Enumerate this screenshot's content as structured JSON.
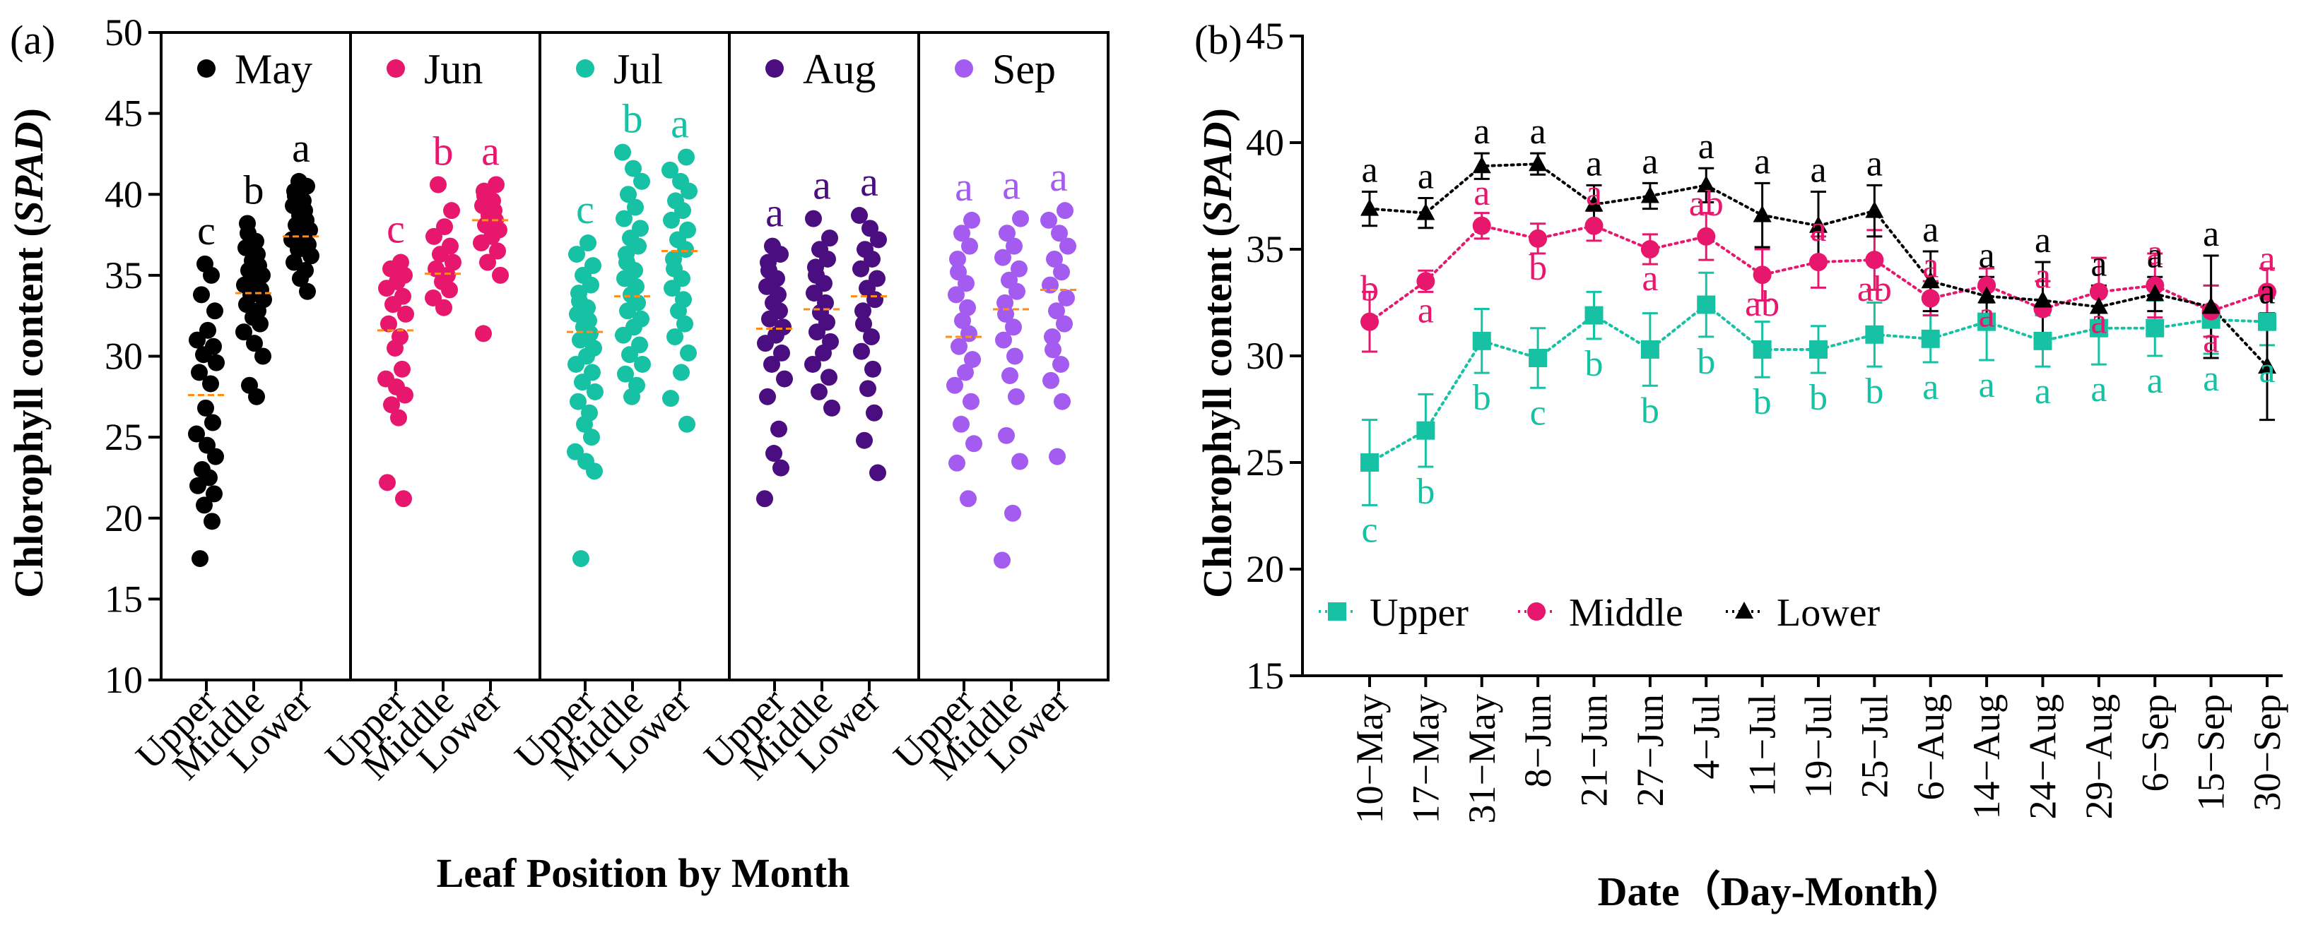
{
  "panel_labels": {
    "a": "(a)",
    "b": "(b)"
  },
  "chart_data": [
    {
      "type": "scatter",
      "panel": "(a)",
      "ylabel_prefix": "Chlorophyll content (",
      "ylabel_italic": "SPAD",
      "ylabel_suffix": ")",
      "xlabel": "Leaf Position by Month",
      "ylim": [
        10,
        50
      ],
      "yticks": [
        10,
        15,
        20,
        25,
        30,
        35,
        40,
        45,
        50
      ],
      "positions": [
        "Upper",
        "Middle",
        "Lower"
      ],
      "months": [
        {
          "name": "May",
          "color": "#000000",
          "letters": [
            "c",
            "b",
            "a"
          ],
          "means": [
            27.6,
            33.9,
            37.4
          ],
          "points": [
            [
              17.5,
              19.8,
              20.8,
              21.5,
              22.0,
              22.5,
              23.0,
              23.8,
              24.5,
              25.2,
              25.9,
              26.8,
              28.3,
              29.0,
              29.6,
              30.1,
              30.6,
              31.0,
              31.6,
              32.8,
              33.8,
              35.0,
              35.7
            ],
            [
              27.5,
              28.2,
              30.0,
              30.8,
              31.5,
              32.0,
              32.4,
              32.8,
              33.2,
              33.5,
              33.8,
              34.1,
              34.4,
              34.7,
              35.0,
              35.3,
              35.6,
              35.9,
              36.3,
              36.7,
              37.1,
              37.6,
              38.2
            ],
            [
              34.0,
              34.8,
              35.3,
              35.8,
              36.2,
              36.6,
              36.9,
              37.2,
              37.5,
              37.8,
              38.1,
              38.4,
              38.7,
              39.0,
              39.3,
              39.6,
              39.9,
              40.2,
              40.5,
              40.8
            ]
          ]
        },
        {
          "name": "Jun",
          "color": "#e8176e",
          "letters": [
            "c",
            "b",
            "a"
          ],
          "means": [
            31.6,
            35.1,
            38.4
          ],
          "points": [
            [
              21.2,
              22.2,
              26.2,
              27.0,
              27.6,
              28.1,
              28.6,
              29.2,
              30.5,
              31.2,
              32.0,
              32.6,
              33.2,
              33.7,
              34.2,
              34.6,
              35.0,
              35.4,
              35.8
            ],
            [
              33.0,
              33.6,
              34.1,
              34.6,
              35.0,
              35.4,
              35.8,
              36.3,
              36.8,
              37.4,
              38.0,
              39.0,
              40.6
            ],
            [
              31.4,
              35.0,
              35.8,
              36.5,
              37.0,
              37.4,
              37.8,
              38.1,
              38.4,
              38.7,
              39.0,
              39.3,
              39.6,
              39.9,
              40.2,
              40.6
            ]
          ]
        },
        {
          "name": "Jul",
          "color": "#17c1a3",
          "letters": [
            "c",
            "b",
            "a"
          ],
          "means": [
            31.5,
            33.7,
            36.5
          ],
          "points": [
            [
              17.5,
              22.9,
              23.5,
              24.1,
              25.0,
              25.8,
              26.5,
              27.2,
              27.8,
              28.4,
              29.0,
              29.5,
              30.0,
              30.5,
              31.0,
              31.4,
              31.8,
              32.2,
              32.6,
              33.0,
              33.4,
              33.9,
              34.4,
              35.0,
              35.6,
              36.3,
              37.0
            ],
            [
              27.5,
              28.2,
              28.9,
              29.5,
              30.1,
              30.7,
              31.3,
              31.8,
              32.3,
              32.8,
              33.3,
              33.8,
              34.3,
              34.8,
              35.3,
              35.8,
              36.3,
              36.8,
              37.3,
              37.9,
              38.5,
              39.2,
              40.0,
              40.8,
              41.6,
              42.6
            ],
            [
              25.8,
              27.4,
              29.0,
              30.2,
              31.2,
              32.0,
              32.8,
              33.5,
              34.2,
              34.8,
              35.4,
              36.0,
              36.6,
              37.2,
              37.8,
              38.4,
              39.0,
              39.6,
              40.2,
              40.8,
              41.5,
              42.3
            ]
          ]
        },
        {
          "name": "Aug",
          "color": "#4a0e80",
          "letters": [
            "a",
            "a",
            "a"
          ],
          "means": [
            31.7,
            32.9,
            33.7
          ],
          "points": [
            [
              21.2,
              23.1,
              24.0,
              25.5,
              27.5,
              28.6,
              29.5,
              30.2,
              30.8,
              31.3,
              31.8,
              32.3,
              32.8,
              33.3,
              33.8,
              34.3,
              34.8,
              35.3,
              35.8,
              36.3,
              36.8
            ],
            [
              26.8,
              27.8,
              28.7,
              29.5,
              30.2,
              30.9,
              31.5,
              32.1,
              32.7,
              33.3,
              33.9,
              34.5,
              35.0,
              35.5,
              36.0,
              36.6,
              37.3,
              38.5
            ],
            [
              22.8,
              24.8,
              26.5,
              28.0,
              29.2,
              30.3,
              31.2,
              32.0,
              32.8,
              33.5,
              34.2,
              34.8,
              35.4,
              36.0,
              36.6,
              37.2,
              37.9,
              38.7
            ]
          ]
        },
        {
          "name": "Sep",
          "color": "#a45cf0",
          "letters": [
            "a",
            "a",
            "a"
          ],
          "means": [
            31.2,
            32.9,
            34.1
          ],
          "points": [
            [
              21.2,
              23.4,
              24.6,
              25.8,
              27.2,
              28.2,
              29.0,
              29.8,
              30.6,
              31.4,
              32.2,
              33.0,
              33.8,
              34.5,
              35.2,
              36.0,
              36.8,
              37.6,
              38.4
            ],
            [
              17.4,
              20.3,
              23.5,
              25.1,
              27.5,
              28.8,
              30.0,
              31.0,
              31.8,
              32.6,
              33.3,
              34.0,
              34.7,
              35.4,
              36.1,
              36.8,
              37.6,
              38.5
            ],
            [
              23.8,
              27.2,
              28.5,
              29.5,
              30.4,
              31.2,
              32.0,
              32.8,
              33.6,
              34.4,
              35.2,
              36.0,
              36.8,
              37.6,
              38.4,
              39.0
            ]
          ]
        }
      ]
    },
    {
      "type": "line",
      "panel": "(b)",
      "ylabel_prefix": "Chlorophyll content (",
      "ylabel_italic": "SPAD",
      "ylabel_suffix": ")",
      "xlabel": "Date（Day-Month）",
      "ylim": [
        15,
        45
      ],
      "yticks": [
        15,
        20,
        25,
        30,
        35,
        40,
        45
      ],
      "categories": [
        "10−May",
        "17−May",
        "31−May",
        "8−Jun",
        "21−Jun",
        "27−Jun",
        "4−Jul",
        "11−Jul",
        "19−Jul",
        "25−Jul",
        "6−Aug",
        "14−Aug",
        "24−Aug",
        "29−Aug",
        "6−Sep",
        "15−Sep",
        "30−Sep"
      ],
      "series": [
        {
          "name": "Upper",
          "color": "#17c1a3",
          "marker": "square",
          "values": [
            25.0,
            26.5,
            30.7,
            29.9,
            31.9,
            30.3,
            32.4,
            30.3,
            30.3,
            31.0,
            30.8,
            31.6,
            30.7,
            31.3,
            31.3,
            31.7,
            31.6
          ],
          "errors": [
            2.0,
            1.7,
            1.5,
            1.4,
            1.1,
            1.7,
            1.5,
            1.3,
            1.1,
            1.5,
            1.1,
            1.8,
            1.2,
            1.7,
            1.3,
            1.6,
            1.1
          ],
          "letters": [
            "c",
            "b",
            "b",
            "c",
            "b",
            "b",
            "b",
            "b",
            "b",
            "b",
            "a",
            "a",
            "a",
            "a",
            "a",
            "a",
            "a"
          ]
        },
        {
          "name": "Middle",
          "color": "#e8176e",
          "marker": "circle",
          "values": [
            31.6,
            33.5,
            36.1,
            35.5,
            36.1,
            35.0,
            35.6,
            33.8,
            34.4,
            34.5,
            32.7,
            33.3,
            32.2,
            33.0,
            33.3,
            32.1,
            33.0
          ],
          "errors": [
            1.4,
            0.5,
            0.6,
            0.7,
            0.7,
            0.7,
            1.1,
            1.2,
            1.2,
            1.4,
            0.8,
            0.8,
            1.3,
            1.6,
            1.5,
            1.2,
            1.1
          ],
          "letters": [
            "b",
            "a",
            "a",
            "b",
            "a",
            "a",
            "ab",
            "ab",
            "a",
            "ab",
            "a",
            "a",
            "a",
            "a",
            "a",
            "a",
            "a"
          ]
        },
        {
          "name": "Lower",
          "color": "#000000",
          "marker": "triangle",
          "values": [
            36.9,
            36.7,
            38.9,
            39.0,
            37.1,
            37.5,
            38.0,
            36.6,
            36.1,
            36.8,
            33.5,
            32.8,
            32.6,
            32.3,
            32.9,
            32.3,
            29.5
          ],
          "errors": [
            0.8,
            0.7,
            0.6,
            0.5,
            0.9,
            0.6,
            0.8,
            1.5,
            1.6,
            1.2,
            1.4,
            0.9,
            1.8,
            1.0,
            0.8,
            2.4,
            2.5
          ],
          "letters": [
            "a",
            "a",
            "a",
            "a",
            "a",
            "a",
            "a",
            "a",
            "a",
            "a",
            "a",
            "a",
            "a",
            "a",
            "a",
            "a",
            "a"
          ]
        }
      ]
    }
  ]
}
